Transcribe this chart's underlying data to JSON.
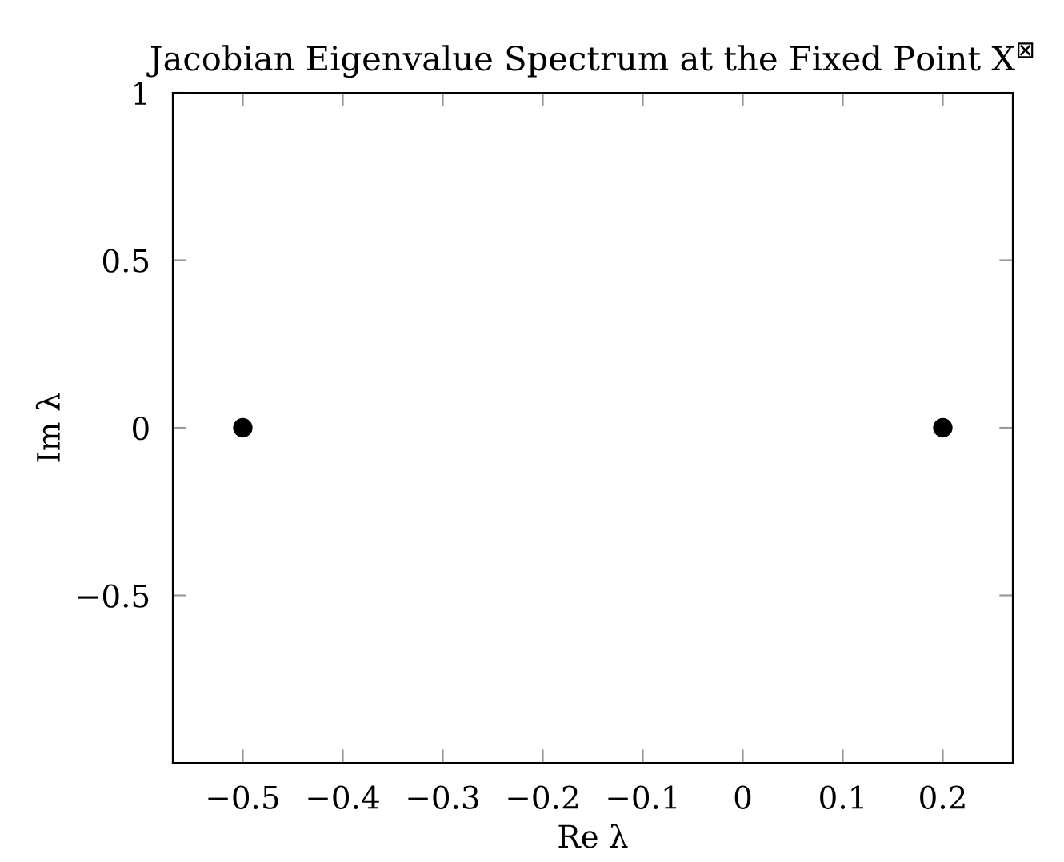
{
  "chart_data": {
    "type": "scatter",
    "title": "Jacobian Eigenvalue Spectrum at the Fixed Point X$^{⊠}$",
    "xlabel": "Re λ",
    "ylabel": "Im λ",
    "x": [
      -0.5,
      0.2
    ],
    "series": [
      {
        "color": "#000000",
        "values": [
          0,
          0
        ]
      }
    ],
    "xlim": [
      -0.57,
      0.27
    ],
    "xticks": [
      -0.5,
      -0.4,
      -0.3,
      -0.2,
      -0.1,
      0,
      0.1,
      0.2
    ],
    "ylim": [
      -1,
      1
    ],
    "yticks": [
      -0.5,
      0,
      0.5,
      1
    ],
    "marker": "circle",
    "grid": false,
    "legend": false
  }
}
